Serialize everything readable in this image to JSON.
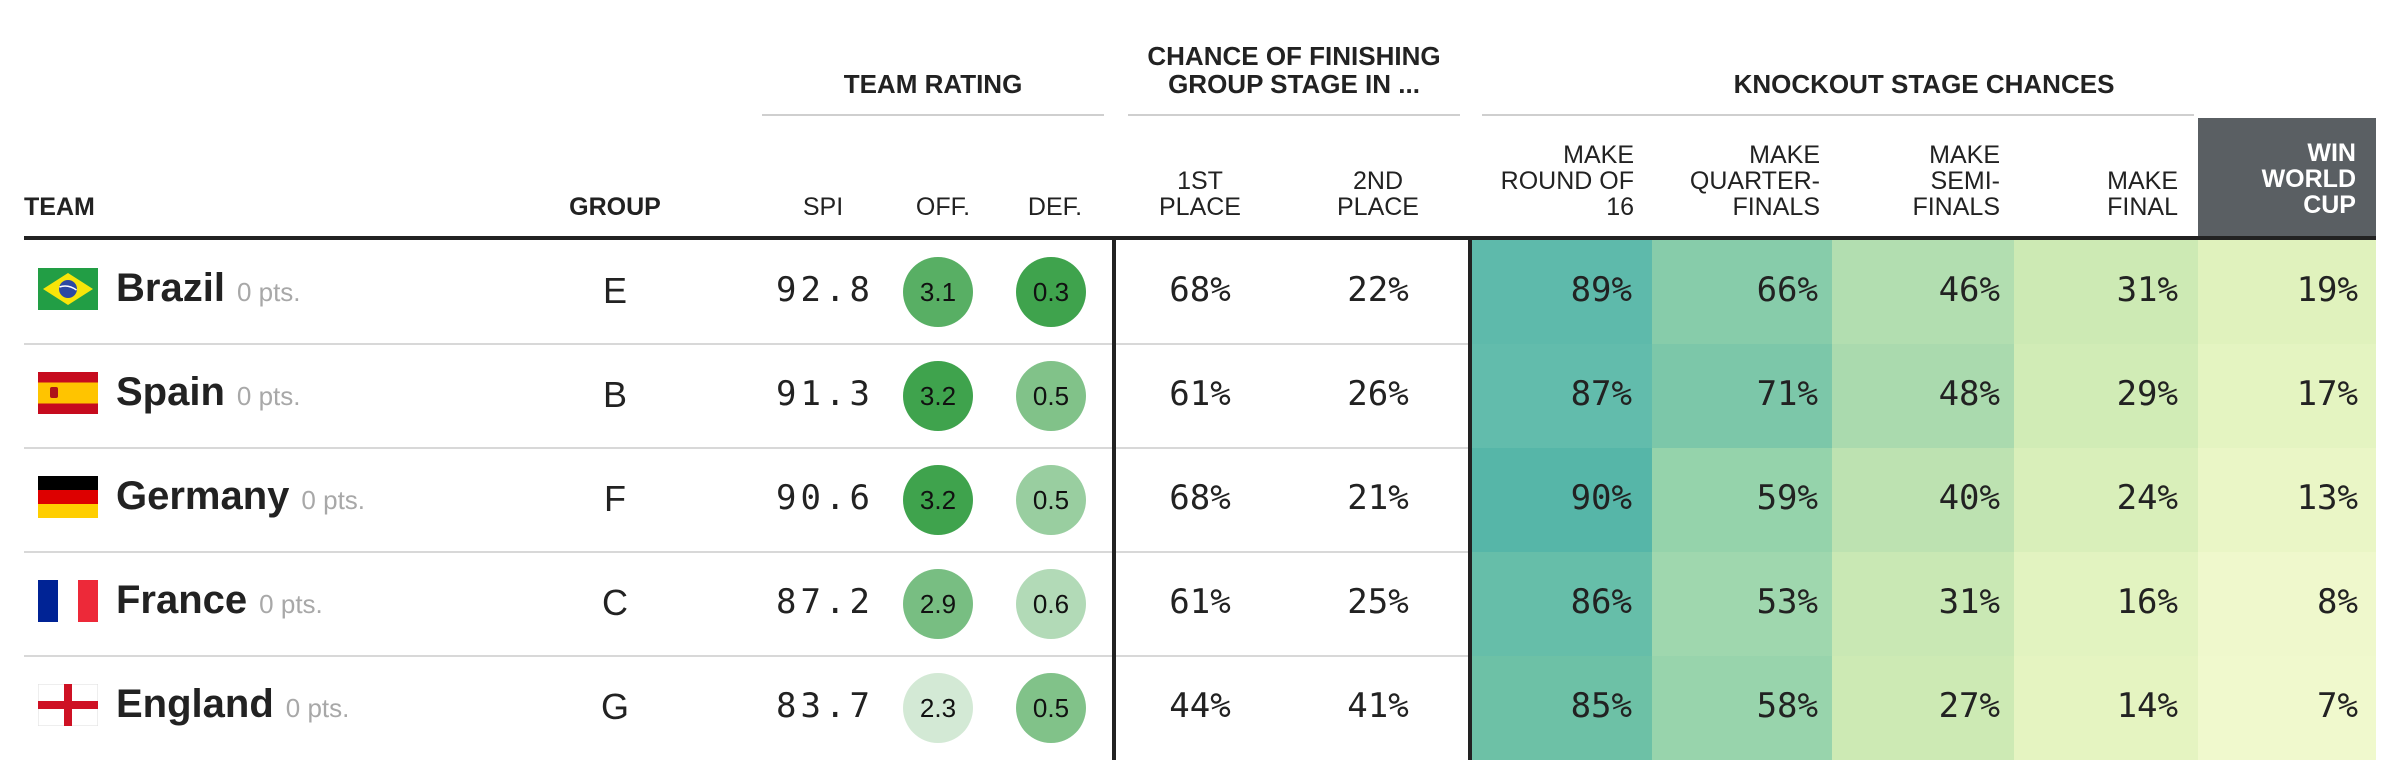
{
  "headers": {
    "team": "TEAM",
    "group": "GROUP",
    "team_rating": "TEAM RATING",
    "chance_finish": [
      "CHANCE OF FINISHING",
      "GROUP STAGE IN ..."
    ],
    "knockout": "KNOCKOUT STAGE CHANCES",
    "spi": "SPI",
    "off": "OFF.",
    "def": "DEF.",
    "first": [
      "1ST",
      "PLACE"
    ],
    "second": [
      "2ND",
      "PLACE"
    ],
    "r16": [
      "MAKE",
      "ROUND OF",
      "16"
    ],
    "qf": [
      "MAKE",
      "QUARTER-",
      "FINALS"
    ],
    "sf": [
      "MAKE",
      "SEMI-",
      "FINALS"
    ],
    "final": [
      "MAKE",
      "FINAL"
    ],
    "win": [
      "WIN",
      "WORLD",
      "CUP"
    ]
  },
  "colors": {
    "header_dark": "#5a5f63",
    "off_scale": [
      "#e3f1e4",
      "#3fa34d"
    ],
    "def_scale": [
      "#e3f1e4",
      "#3fa34d"
    ]
  },
  "teams": [
    {
      "flag": "brazil-flag",
      "name": "Brazil",
      "pts": "0 pts.",
      "group": "E",
      "spi": "92.8",
      "off": "3.1",
      "off_level": 0.85,
      "def": "0.3",
      "def_level": 1.0,
      "first": "68%",
      "second": "22%",
      "r16": "89%",
      "qf": "66%",
      "sf": "46%",
      "final": "31%",
      "win": "19%"
    },
    {
      "flag": "spain-flag",
      "name": "Spain",
      "pts": "0 pts.",
      "group": "B",
      "spi": "91.3",
      "off": "3.2",
      "off_level": 1.0,
      "def": "0.5",
      "def_level": 0.6,
      "first": "61%",
      "second": "26%",
      "r16": "87%",
      "qf": "71%",
      "sf": "48%",
      "final": "29%",
      "win": "17%"
    },
    {
      "flag": "germany-flag",
      "name": "Germany",
      "pts": "0 pts.",
      "group": "F",
      "spi": "90.6",
      "off": "3.2",
      "off_level": 1.0,
      "def": "0.5",
      "def_level": 0.45,
      "first": "68%",
      "second": "21%",
      "r16": "90%",
      "qf": "59%",
      "sf": "40%",
      "final": "24%",
      "win": "13%"
    },
    {
      "flag": "france-flag",
      "name": "France",
      "pts": "0 pts.",
      "group": "C",
      "spi": "87.2",
      "off": "2.9",
      "off_level": 0.65,
      "def": "0.6",
      "def_level": 0.3,
      "first": "61%",
      "second": "25%",
      "r16": "86%",
      "qf": "53%",
      "sf": "31%",
      "final": "16%",
      "win": "8%"
    },
    {
      "flag": "england-flag",
      "name": "England",
      "pts": "0 pts.",
      "group": "G",
      "spi": "83.7",
      "off": "2.3",
      "off_level": 0.1,
      "def": "0.5",
      "def_level": 0.6,
      "first": "44%",
      "second": "41%",
      "r16": "85%",
      "qf": "58%",
      "sf": "27%",
      "final": "14%",
      "win": "7%"
    }
  ],
  "knockout_colors": {
    "r16": [
      "#5ebaab",
      "#62bcac",
      "#56b6a8",
      "#66bea9",
      "#6dc1a6"
    ],
    "qf": [
      "#87ccaa",
      "#7cc7a9",
      "#95d3ab",
      "#9fd7ae",
      "#98d4ac"
    ],
    "sf": [
      "#b2deb0",
      "#aadaae",
      "#bde2b1",
      "#c9e8b4",
      "#cdeab4"
    ],
    "final": [
      "#cdeab4",
      "#d1ecb6",
      "#d9efba",
      "#e2f3c0",
      "#e5f4c1"
    ],
    "win": [
      "#e0f2bd",
      "#e4f4c1",
      "#eaf6c6",
      "#eff8cc",
      "#f0f9cd"
    ]
  }
}
